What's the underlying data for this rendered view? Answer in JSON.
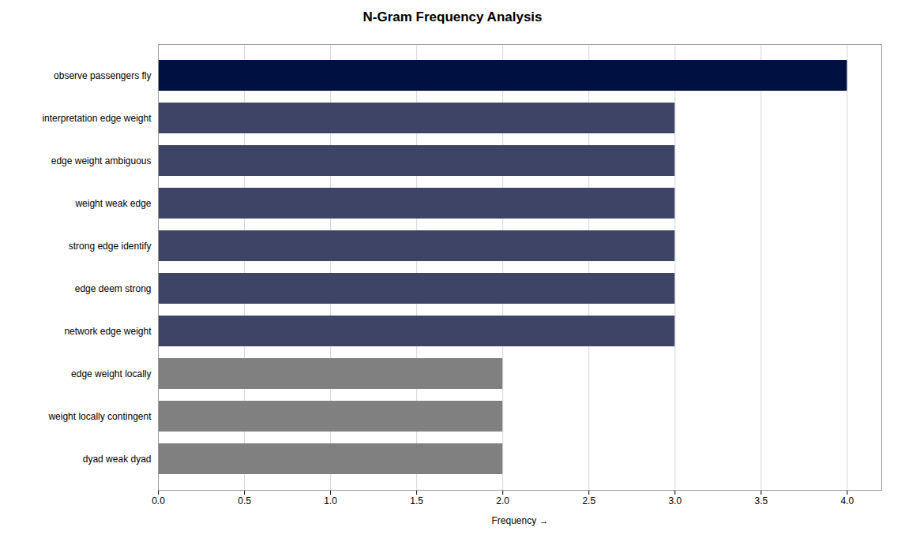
{
  "chart_data": {
    "type": "bar",
    "orientation": "horizontal",
    "title": "N-Gram Frequency Analysis",
    "xlabel": "Frequency",
    "categories": [
      "dyad weak dyad",
      "weight locally contingent",
      "edge weight locally",
      "network edge weight",
      "edge deem strong",
      "strong edge identify",
      "weight weak edge",
      "edge weight ambiguous",
      "interpretation edge weight",
      "observe passengers fly"
    ],
    "values": [
      2,
      2,
      2,
      3,
      3,
      3,
      3,
      3,
      3,
      4
    ],
    "colors": [
      "#808080",
      "#808080",
      "#808080",
      "#3d4466",
      "#3d4466",
      "#3d4466",
      "#3d4466",
      "#3d4466",
      "#3d4466",
      "#001040"
    ],
    "xlim": [
      0,
      4.2
    ],
    "xticks": [
      {
        "value": 0.0,
        "label": "0.0"
      },
      {
        "value": 0.5,
        "label": "0.5"
      },
      {
        "value": 1.0,
        "label": "1.0"
      },
      {
        "value": 1.5,
        "label": "1.5"
      },
      {
        "value": 2.0,
        "label": "2.0"
      },
      {
        "value": 2.5,
        "label": "2.5"
      },
      {
        "value": 3.0,
        "label": "3.0"
      },
      {
        "value": 3.5,
        "label": "3.5"
      },
      {
        "value": 4.0,
        "label": "4.0"
      }
    ],
    "grid": true
  }
}
